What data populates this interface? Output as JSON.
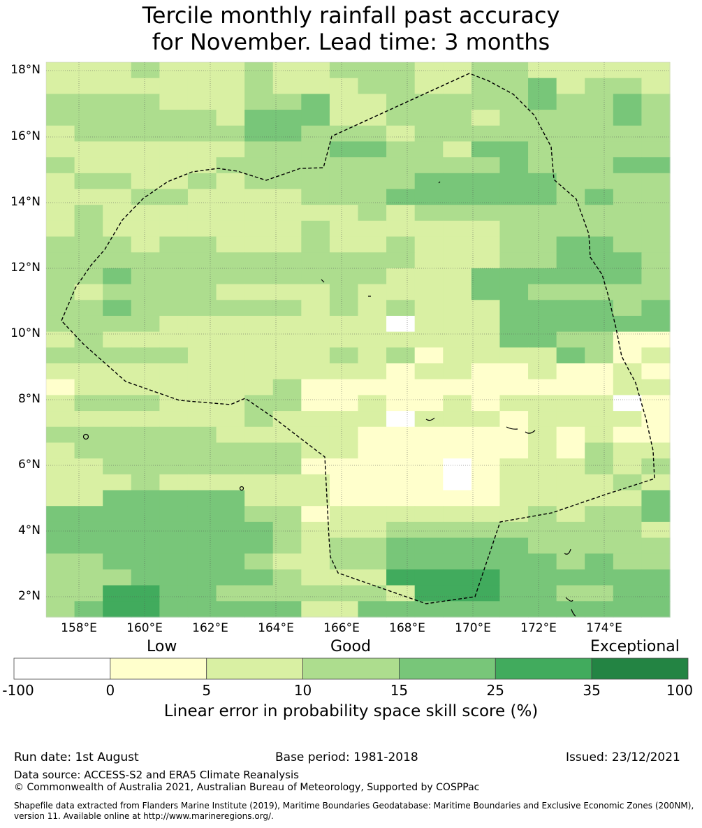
{
  "title": {
    "line1": "Tercile monthly rainfall past accuracy",
    "line2": "for November. Lead time: 3 months"
  },
  "map": {
    "lat_labels": [
      "18°N",
      "16°N",
      "14°N",
      "12°N",
      "10°N",
      "8°N",
      "6°N",
      "4°N",
      "2°N"
    ],
    "lon_labels": [
      "158°E",
      "160°E",
      "162°E",
      "164°E",
      "166°E",
      "168°E",
      "170°E",
      "172°E",
      "174°E"
    ],
    "category_colors": [
      "#ffffff",
      "#ffffcc",
      "#d9f0a3",
      "#addd8e",
      "#78c679",
      "#41ab5d",
      "#238443"
    ],
    "grid_rows": [
      "2223222322333223322222",
      "2222222322233223342332",
      "3333222334223333343343",
      "3333332444223332333343",
      "2333333443332333333333",
      "2222222333443324433333",
      "3222223333333333433344",
      "2332232333333444443333",
      "2223322223334444443433",
      "2322222222232333333333",
      "2322222223222222333333",
      "3332332223223222334433",
      "3333333333333222334443",
      "3343333333332224444443",
      "3233332222322224433333",
      "3343333332323222444434",
      "3333222222220222444444",
      "2322222222222222443311",
      "3333322222323122224312",
      "2222222222221221121121",
      "1222222231111111111122",
      "2333222331121121222201",
      "2222222322220222122221",
      "3333332222211111121211",
      "2333333332211111121322",
      "2233333331111101222323",
      "2223222222111101222232",
      "2244444222111111222224",
      "4444444331222222232334",
      "4444444432223333333332",
      "4444444432334444433333",
      "3344444322334444443433",
      "3334444432225555444444",
      "3355443333332555443344",
      "3455444442244444444444"
    ]
  },
  "colorbar": {
    "qualitative": [
      "Low",
      "Good",
      "Exceptional"
    ],
    "ticks": [
      "-100",
      "0",
      "5",
      "10",
      "15",
      "25",
      "35",
      "100"
    ],
    "label": "Linear error in probability space skill score (%)"
  },
  "footer": {
    "run_date": "Run date: 1st August",
    "base_period": "Base period: 1981-2018",
    "issued": "Issued: 23/12/2021",
    "data_source": "Data source: ACCESS-S2 and ERA5 Climate Reanalysis",
    "copyright": "© Commonwealth of Australia 2021, Australian Bureau of Meteorology, Supported by COSPPac",
    "shapefile_line1": "Shapefile data extracted from Flanders Marine Institute (2019), Maritime Boundaries Geodatabase: Maritime Boundaries and Exclusive Economic Zones (200NM),",
    "shapefile_line2": "version 11. Available online at http://www.marineregions.org/."
  }
}
